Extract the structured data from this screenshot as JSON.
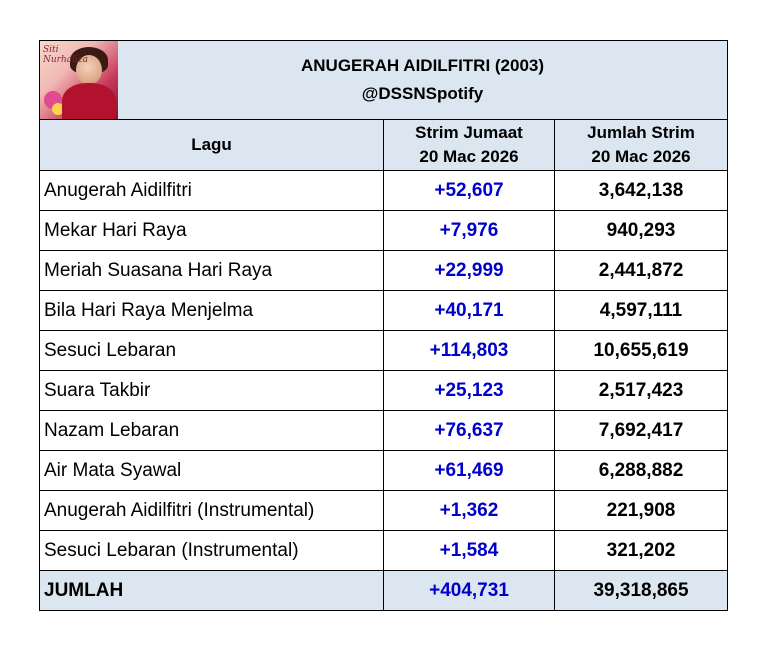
{
  "title": "ANUGERAH AIDILFITRI (2003)",
  "subtitle": "@DSSNSpotify",
  "columns": {
    "song": "Lagu",
    "daily_line1": "Strim Jumaat",
    "daily_line2": "20 Mac 2026",
    "total_line1": "Jumlah Strim",
    "total_line2": "20 Mac 2026"
  },
  "rows": [
    {
      "song": "Anugerah Aidilfitri",
      "daily": "+52,607",
      "total": "3,642,138"
    },
    {
      "song": "Mekar Hari Raya",
      "daily": "+7,976",
      "total": "940,293"
    },
    {
      "song": "Meriah Suasana Hari Raya",
      "daily": "+22,999",
      "total": "2,441,872"
    },
    {
      "song": "Bila Hari Raya Menjelma",
      "daily": "+40,171",
      "total": "4,597,111"
    },
    {
      "song": "Sesuci Lebaran",
      "daily": "+114,803",
      "total": "10,655,619"
    },
    {
      "song": "Suara Takbir",
      "daily": "+25,123",
      "total": "2,517,423"
    },
    {
      "song": "Nazam Lebaran",
      "daily": "+76,637",
      "total": "7,692,417"
    },
    {
      "song": "Air Mata Syawal",
      "daily": "+61,469",
      "total": "6,288,882"
    },
    {
      "song": "Anugerah Aidilfitri (Instrumental)",
      "daily": "+1,362",
      "total": "221,908"
    },
    {
      "song": "Sesuci Lebaran (Instrumental)",
      "daily": "+1,584",
      "total": "321,202"
    }
  ],
  "summary": {
    "label": "JUMLAH",
    "daily": "+404,731",
    "total": "39,318,865"
  },
  "colors": {
    "header_bg": "#dce6f1",
    "delta": "#0000cc"
  }
}
